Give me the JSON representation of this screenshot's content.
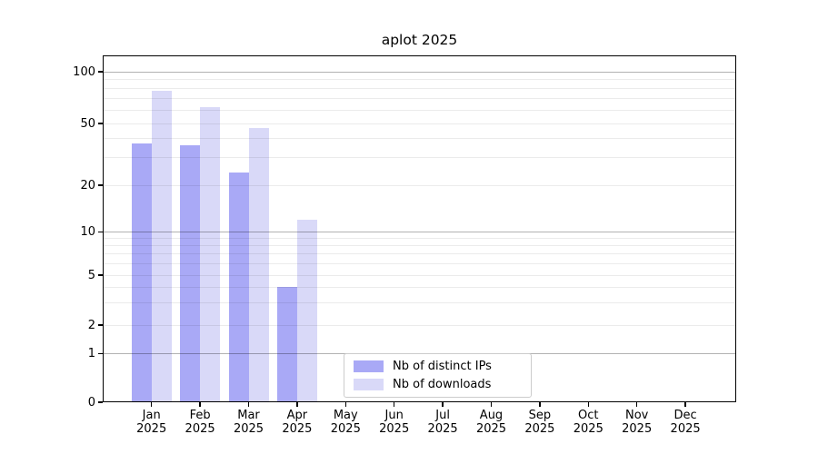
{
  "chart_data": {
    "type": "bar",
    "title": "aplot 2025",
    "categories": [
      "Jan",
      "Feb",
      "Mar",
      "Apr",
      "May",
      "Jun",
      "Jul",
      "Aug",
      "Sep",
      "Oct",
      "Nov",
      "Dec"
    ],
    "x_tick_sublabel": "2025",
    "series": [
      {
        "name": "Nb of distinct IPs",
        "color": "#a9a9f6",
        "values": [
          37,
          36,
          24,
          4,
          0,
          0,
          0,
          0,
          0,
          0,
          0,
          0
        ]
      },
      {
        "name": "Nb of downloads",
        "color": "#d9d9f8",
        "values": [
          77,
          62,
          47,
          12,
          0,
          0,
          0,
          0,
          0,
          0,
          0,
          0
        ]
      }
    ],
    "yticks": [
      0,
      1,
      2,
      5,
      10,
      20,
      50,
      100
    ],
    "ylim": [
      0,
      120
    ],
    "scale": "log-like with zero baseline (ticks 0,1,2,5,10,20,50,100)",
    "grid": "horizontal major and minor gridlines, drawn over bars",
    "legend": {
      "position": "bottom-center",
      "entries": [
        "Nb of distinct IPs",
        "Nb of downloads"
      ]
    },
    "colors": {
      "bar_distinct_ips": "#a9a9f6",
      "bar_downloads": "#d9d9f8",
      "grid_major": "rgba(0,0,0,0.30)",
      "grid_minor": "rgba(0,0,0,0.08)",
      "axis": "#000000"
    }
  }
}
